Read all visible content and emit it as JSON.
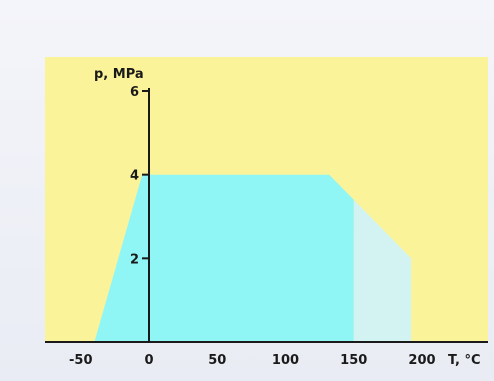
{
  "chart_data": {
    "type": "area",
    "xlabel": "T, °C",
    "ylabel": "p, MPa",
    "xlim": [
      -75,
      235
    ],
    "ylim": [
      0,
      6.35
    ],
    "x_ticks": [
      -50,
      0,
      50,
      100,
      150,
      200
    ],
    "x_tick_labels": [
      "-50",
      "0",
      "50",
      "100",
      "150",
      "200"
    ],
    "y_ticks": [
      2,
      4,
      6
    ],
    "y_tick_labels": [
      "2",
      "4",
      "6"
    ],
    "grid": false,
    "regions": [
      {
        "color": "#8ff5f5",
        "points": [
          [
            -40,
            0
          ],
          [
            -5,
            4
          ],
          [
            132,
            4
          ],
          [
            150,
            3.4
          ],
          [
            150,
            0
          ]
        ]
      },
      {
        "color": "#d3f3f3",
        "points": [
          [
            150,
            0
          ],
          [
            150,
            3.4
          ],
          [
            192,
            2.0
          ],
          [
            192,
            0
          ]
        ]
      }
    ]
  },
  "colors": {
    "plot_background": "#fbf39a",
    "axis": "#1a1a1a"
  }
}
